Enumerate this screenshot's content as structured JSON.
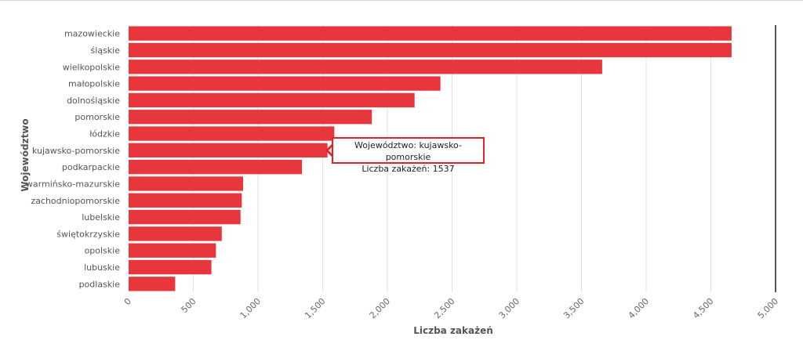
{
  "chart_data": {
    "type": "bar",
    "orientation": "horizontal",
    "xlabel": "Liczba zakażeń",
    "ylabel": "Województwo",
    "xlim": [
      0,
      5000
    ],
    "xticks": [
      "0",
      "500",
      "1,000",
      "1,500",
      "2,000",
      "2,500",
      "3,000",
      "3,500",
      "4,000",
      "4,500",
      "5,000"
    ],
    "grid": true,
    "bar_color": "#e8373c",
    "categories": [
      "mazowieckie",
      "śląskie",
      "wielkopolskie",
      "małopolskie",
      "dolnośląskie",
      "pomorskie",
      "łódzkie",
      "kujawsko-pomorskie",
      "podkarpackie",
      "warmińsko-mazurskie",
      "zachodniopomorskie",
      "lubelskie",
      "świętokrzyskie",
      "opolskie",
      "lubuskie",
      "podlaskie"
    ],
    "values": [
      4660,
      4660,
      3660,
      2410,
      2210,
      1880,
      1590,
      1537,
      1340,
      885,
      875,
      865,
      720,
      675,
      640,
      360
    ]
  },
  "tooltip": {
    "line1": "Województwo: kujawsko-pomorskie",
    "line2": "Liczba zakażeń: 1537"
  }
}
